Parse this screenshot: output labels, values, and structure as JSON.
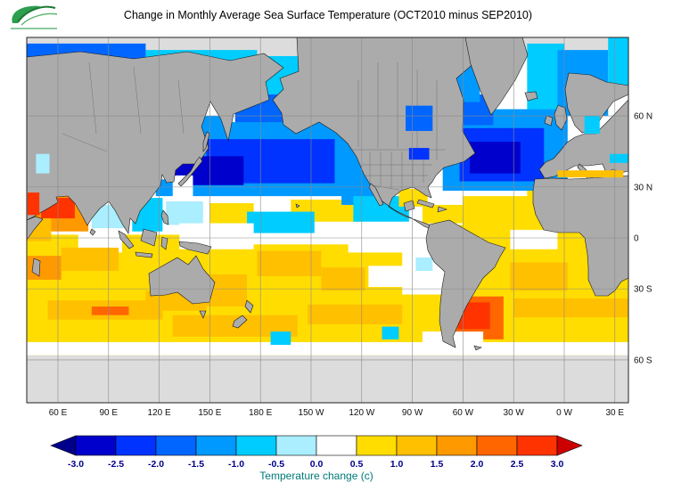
{
  "header": {
    "title": "Change in Monthly Average Sea Surface Temperature (OCT2010 minus SEP2010)"
  },
  "chart_data": {
    "type": "heatmap",
    "title": "Change in Monthly Average Sea Surface Temperature (OCT2010 minus SEP2010)",
    "variable": "Sea surface temperature change",
    "units": "C",
    "projection": "mercator",
    "lon_range": [
      41.5,
      398
    ],
    "lat_range": [
      80,
      -72
    ],
    "x_tick_labels": [
      "60 E",
      "90 E",
      "120 E",
      "150 E",
      "180 E",
      "150 W",
      "120 W",
      "90 W",
      "60 W",
      "30 W",
      "0 W",
      "30 E"
    ],
    "x_tick_lons": [
      60,
      90,
      120,
      150,
      180,
      210,
      240,
      270,
      300,
      330,
      360,
      390
    ],
    "y_tick_labels": [
      "60 N",
      "30 N",
      "0",
      "30 S",
      "60 S"
    ],
    "y_tick_lats": [
      60,
      30,
      0,
      -30,
      -60
    ],
    "grid": true,
    "land_color": "#ABABAB",
    "no_data_color": "#DCDCDC",
    "ocean_base_color": "#FFFFFF",
    "colorbar": {
      "label": "Temperature change  (c)",
      "ticks": [
        -3.0,
        -2.5,
        -2.0,
        -1.5,
        -1.0,
        -0.5,
        0.0,
        0.5,
        1.0,
        1.5,
        2.0,
        2.5,
        3.0
      ],
      "tick_labels": [
        "-3.0",
        "-2.5",
        "-2.0",
        "-1.5",
        "-1.0",
        "-0.5",
        "0.0",
        "0.5",
        "1.0",
        "1.5",
        "2.0",
        "2.5",
        "3.0"
      ],
      "step": 0.5,
      "under_arrow_color": "#00008B",
      "over_arrow_color": "#CC0000",
      "segment_colors": [
        "#0000CC",
        "#0033FF",
        "#0066FF",
        "#0099FF",
        "#00CCFF",
        "#AAEEFF",
        "#FFFFFF",
        "#FFDD00",
        "#FFC000",
        "#FF9900",
        "#FF6600",
        "#FF3300"
      ],
      "tick_color": "#00008B",
      "label_color": "#007878"
    },
    "regions": [
      {
        "name": "arctic-nodata",
        "lon": [
          40,
          400
        ],
        "lat": [
          81,
          74
        ],
        "value": null
      },
      {
        "name": "antarctic-nodata",
        "lon": [
          40,
          400
        ],
        "lat": [
          -58.5,
          -73
        ],
        "value": null
      },
      {
        "name": "southern-ocean-band",
        "lon": [
          40,
          400
        ],
        "lat": [
          -33,
          -58.5
        ],
        "value": 0.7
      },
      {
        "name": "subantarctic-white",
        "lon": [
          40,
          400
        ],
        "lat": [
          -54,
          -58.5
        ],
        "value": 0.2
      },
      {
        "name": "south-indian-base",
        "lon": [
          40,
          150
        ],
        "lat": [
          2,
          -33
        ],
        "value": 0.7
      },
      {
        "name": "south-pacific-base",
        "lon": [
          148,
          292
        ],
        "lat": [
          -4,
          -33
        ],
        "value": 0.7
      },
      {
        "name": "south-atlantic-base",
        "lon": [
          292,
          400
        ],
        "lat": [
          8,
          -33
        ],
        "value": 0.7
      },
      {
        "name": "barents-kara-sea",
        "lon": [
          40,
          112
        ],
        "lat": [
          76,
          69
        ],
        "value": -1.7
      },
      {
        "name": "east-siberian-sea",
        "lon": [
          112,
          178
        ],
        "lat": [
          75,
          70
        ],
        "value": -0.7
      },
      {
        "name": "chukchi-sea",
        "lon": [
          178,
          216
        ],
        "lat": [
          74,
          66
        ],
        "value": -0.7
      },
      {
        "name": "bering-sea",
        "lon": [
          165,
          205
        ],
        "lat": [
          66,
          56
        ],
        "value": -1.7
      },
      {
        "name": "sea-of-okhotsk",
        "lon": [
          142,
          158
        ],
        "lat": [
          60,
          50
        ],
        "value": -1.2
      },
      {
        "name": "north-pacific-cool",
        "lon": [
          140,
          248
        ],
        "lat": [
          58,
          25
        ],
        "value": -1.2
      },
      {
        "name": "north-pacific-core",
        "lon": [
          148,
          224
        ],
        "lat": [
          52,
          32
        ],
        "value": -2.2
      },
      {
        "name": "kuroshio-cool-core",
        "lon": [
          140,
          170
        ],
        "lat": [
          45,
          31
        ],
        "value": -2.8
      },
      {
        "name": "sea-of-japan",
        "lon": [
          128,
          140
        ],
        "lat": [
          46,
          36
        ],
        "value": -2.8
      },
      {
        "name": "east-china-sea",
        "lon": [
          118,
          128
        ],
        "lat": [
          34,
          25
        ],
        "value": -1.2
      },
      {
        "name": "subtrop-npac-yellow-west",
        "lon": [
          150,
          176
        ],
        "lat": [
          21,
          9
        ],
        "value": 0.7
      },
      {
        "name": "subtrop-npac-yellow-east",
        "lon": [
          198,
          240
        ],
        "lat": [
          23,
          10
        ],
        "value": 0.7
      },
      {
        "name": "california-current",
        "lon": [
          228,
          252
        ],
        "lat": [
          43,
          20
        ],
        "value": -1.2
      },
      {
        "name": "baja-cool-tongue",
        "lon": [
          235,
          268
        ],
        "lat": [
          25,
          10
        ],
        "value": -0.7
      },
      {
        "name": "central-pacific-itcz",
        "lon": [
          172,
          212
        ],
        "lat": [
          16,
          3
        ],
        "value": -0.7
      },
      {
        "name": "south-china-sea",
        "lon": [
          104,
          122
        ],
        "lat": [
          24,
          4
        ],
        "value": -0.7
      },
      {
        "name": "philippine-sea",
        "lon": [
          124,
          146
        ],
        "lat": [
          22,
          8
        ],
        "value": -0.3
      },
      {
        "name": "bay-of-bengal",
        "lon": [
          80,
          100
        ],
        "lat": [
          20,
          6
        ],
        "value": -0.3
      },
      {
        "name": "arabian-sea-warm",
        "lon": [
          40,
          78
        ],
        "lat": [
          28,
          4
        ],
        "value": 1.7
      },
      {
        "name": "arabian-sea-core",
        "lon": [
          50,
          70
        ],
        "lat": [
          24,
          12
        ],
        "value": 2.7
      },
      {
        "name": "somali-coast-warm",
        "lon": [
          40,
          56
        ],
        "lat": [
          12,
          -2
        ],
        "value": 1.2
      },
      {
        "name": "north-atlantic-fringe",
        "lon": [
          288,
          362
        ],
        "lat": [
          62,
          28
        ],
        "value": -1.2
      },
      {
        "name": "north-atlantic-core",
        "lon": [
          298,
          348
        ],
        "lat": [
          56,
          33
        ],
        "value": -2.2
      },
      {
        "name": "north-atlantic-deep",
        "lon": [
          304,
          334
        ],
        "lat": [
          51,
          37
        ],
        "value": -2.8
      },
      {
        "name": "labrador-sea",
        "lon": [
          294,
          318
        ],
        "lat": [
          66,
          57
        ],
        "value": -1.7
      },
      {
        "name": "baffin-bay",
        "lon": [
          288,
          310
        ],
        "lat": [
          76,
          64
        ],
        "value": -1.2
      },
      {
        "name": "greenland-sea",
        "lon": [
          338,
          360
        ],
        "lat": [
          76,
          62
        ],
        "value": -0.7
      },
      {
        "name": "norwegian-sea",
        "lon": [
          356,
          386
        ],
        "lat": [
          75,
          60
        ],
        "value": -1.2
      },
      {
        "name": "barents-east",
        "lon": [
          386,
          400
        ],
        "lat": [
          78,
          66
        ],
        "value": -0.7
      },
      {
        "name": "gulf-of-mexico",
        "lon": [
          262,
          279
        ],
        "lat": [
          29,
          19
        ],
        "value": 0.7
      },
      {
        "name": "caribbean-yellow",
        "lon": [
          276,
          300
        ],
        "lat": [
          20,
          9
        ],
        "value": 0.7
      },
      {
        "name": "tropical-atlantic-yellow",
        "lon": [
          300,
          348
        ],
        "lat": [
          25,
          7
        ],
        "value": 0.7
      },
      {
        "name": "canary-coast",
        "lon": [
          338,
          356
        ],
        "lat": [
          28,
          11
        ],
        "value": 0.7
      },
      {
        "name": "eq-indian-white",
        "lon": [
          72,
          98
        ],
        "lat": [
          3,
          -9
        ],
        "value": 0.2
      },
      {
        "name": "eq-wpac-white",
        "lon": [
          132,
          176
        ],
        "lat": [
          9,
          -7
        ],
        "value": 0.2
      },
      {
        "name": "eq-epac-white",
        "lon": [
          232,
          278
        ],
        "lat": [
          5,
          -9
        ],
        "value": 0.2
      },
      {
        "name": "eq-atl-white",
        "lon": [
          328,
          356
        ],
        "lat": [
          5,
          -7
        ],
        "value": 0.2
      },
      {
        "name": "madagascar-warm",
        "lon": [
          42,
          62
        ],
        "lat": [
          -11,
          -25
        ],
        "value": 1.7
      },
      {
        "name": "central-indian-warm",
        "lon": [
          62,
          96
        ],
        "lat": [
          -6,
          -20
        ],
        "value": 1.2
      },
      {
        "name": "australia-bight-warm",
        "lon": [
          112,
          148
        ],
        "lat": [
          -31,
          -41
        ],
        "value": 1.2
      },
      {
        "name": "coral-tasman-warm",
        "lon": [
          148,
          172
        ],
        "lat": [
          -22,
          -39
        ],
        "value": 1.2
      },
      {
        "name": "spcz-warm",
        "lon": [
          178,
          216
        ],
        "lat": [
          -8,
          -23
        ],
        "value": 1.2
      },
      {
        "name": "south-pacific-orange",
        "lon": [
          216,
          242
        ],
        "lat": [
          -18,
          -31
        ],
        "value": 1.2
      },
      {
        "name": "sp-white-patch",
        "lon": [
          244,
          268
        ],
        "lat": [
          -17,
          -29
        ],
        "value": 0.2
      },
      {
        "name": "peru-white",
        "lon": [
          264,
          290
        ],
        "lat": [
          -4,
          -33
        ],
        "value": 0.2
      },
      {
        "name": "peru-cyan",
        "lon": [
          272,
          282
        ],
        "lat": [
          -12,
          -20
        ],
        "value": -0.3
      },
      {
        "name": "brazil-warm",
        "lon": [
          328,
          362
        ],
        "lat": [
          -15,
          -31
        ],
        "value": 1.2
      },
      {
        "name": "argentina-shelf-warm",
        "lon": [
          292,
          324
        ],
        "lat": [
          -34,
          -53
        ],
        "value": 2.2
      },
      {
        "name": "argentina-shelf-core",
        "lon": [
          297,
          316
        ],
        "lat": [
          -37,
          -49
        ],
        "value": 2.8
      },
      {
        "name": "south-indian-streak",
        "lon": [
          54,
          122
        ],
        "lat": [
          -36,
          -45
        ],
        "value": 1.2
      },
      {
        "name": "south-indian-red",
        "lon": [
          80,
          102
        ],
        "lat": [
          -39,
          -43
        ],
        "value": 2.2
      },
      {
        "name": "south-pacific-streak",
        "lon": [
          128,
          202
        ],
        "lat": [
          -43,
          -52
        ],
        "value": 1.2
      },
      {
        "name": "south-pacific-streak-2",
        "lon": [
          208,
          264
        ],
        "lat": [
          -38,
          -47
        ],
        "value": 1.2
      },
      {
        "name": "south-atlantic-streak",
        "lon": [
          330,
          398
        ],
        "lat": [
          -35,
          -44
        ],
        "value": 1.2
      },
      {
        "name": "southern-cyan-spot-1",
        "lon": [
          186,
          198
        ],
        "lat": [
          -50,
          -55
        ],
        "value": -0.7
      },
      {
        "name": "southern-cyan-spot-2",
        "lon": [
          252,
          262
        ],
        "lat": [
          -48,
          -53
        ],
        "value": -0.7
      },
      {
        "name": "drake-white",
        "lon": [
          276,
          312
        ],
        "lat": [
          -50,
          -57
        ],
        "value": 0.2
      }
    ],
    "overlay_regions": [
      {
        "name": "hudson-bay",
        "lon": [
          266,
          282
        ],
        "lat": [
          63,
          55
        ],
        "value": -1.7
      },
      {
        "name": "great-lakes",
        "lon": [
          268,
          280
        ],
        "lat": [
          48.5,
          43.5
        ],
        "value": -2.2
      },
      {
        "name": "mediterranean",
        "lon": [
          356,
          395
        ],
        "lat": [
          38.5,
          35
        ],
        "value": 1.2
      },
      {
        "name": "black-sea",
        "lon": [
          387,
          400
        ],
        "lat": [
          46,
          42
        ],
        "value": -0.7
      },
      {
        "name": "baltic-sea",
        "lon": [
          372,
          381
        ],
        "lat": [
          60,
          54
        ],
        "value": -0.7
      },
      {
        "name": "caspian-sea",
        "lon": [
          47,
          55
        ],
        "lat": [
          46,
          37
        ],
        "value": -0.3
      },
      {
        "name": "red-sea",
        "lon": [
          42,
          49
        ],
        "lat": [
          27,
          14
        ],
        "value": 2.7
      }
    ]
  }
}
